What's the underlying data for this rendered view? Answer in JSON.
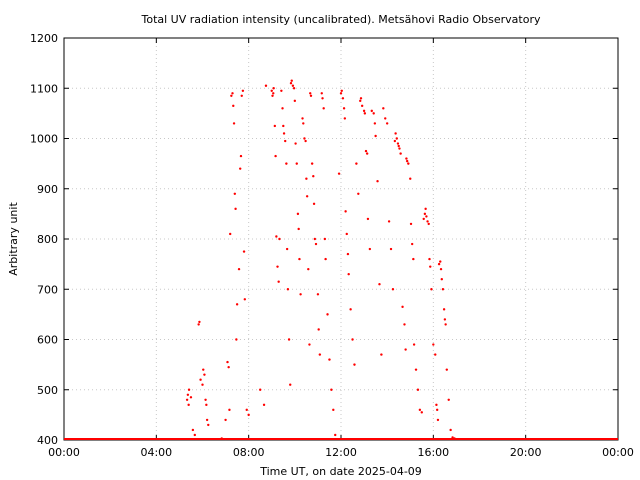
{
  "chart_data": {
    "type": "scatter",
    "title": "Total UV radiation intensity (uncalibrated). Metsähovi Radio Observatory",
    "xlabel": "Time UT, on date 2025-04-09",
    "ylabel": "Arbitrary unit",
    "xlim": [
      "00:00",
      "24:00"
    ],
    "ylim": [
      400,
      1200
    ],
    "x_ticks": [
      "00:00",
      "04:00",
      "08:00",
      "12:00",
      "16:00",
      "20:00",
      "00:00"
    ],
    "y_ticks": [
      400,
      500,
      600,
      700,
      800,
      900,
      1000,
      1100,
      1200
    ],
    "grid": true,
    "marker_color": "#ff0000",
    "baseline": {
      "value": 400,
      "from": "00:00",
      "to": "24:00"
    },
    "points": [
      [
        "05:20",
        480
      ],
      [
        "05:22",
        490
      ],
      [
        "05:24",
        470
      ],
      [
        "05:25",
        500
      ],
      [
        "05:30",
        485
      ],
      [
        "05:35",
        420
      ],
      [
        "05:40",
        410
      ],
      [
        "05:50",
        630
      ],
      [
        "05:52",
        635
      ],
      [
        "05:55",
        520
      ],
      [
        "06:00",
        510
      ],
      [
        "06:02",
        540
      ],
      [
        "06:05",
        530
      ],
      [
        "06:08",
        480
      ],
      [
        "06:10",
        470
      ],
      [
        "06:12",
        440
      ],
      [
        "06:15",
        430
      ],
      [
        "06:50",
        400
      ],
      [
        "07:00",
        440
      ],
      [
        "07:05",
        555
      ],
      [
        "07:08",
        545
      ],
      [
        "07:10",
        460
      ],
      [
        "07:12",
        810
      ],
      [
        "07:15",
        1085
      ],
      [
        "07:18",
        1090
      ],
      [
        "07:20",
        1065
      ],
      [
        "07:22",
        1030
      ],
      [
        "07:24",
        890
      ],
      [
        "07:26",
        860
      ],
      [
        "07:28",
        600
      ],
      [
        "07:30",
        670
      ],
      [
        "07:35",
        740
      ],
      [
        "07:38",
        940
      ],
      [
        "07:40",
        965
      ],
      [
        "07:42",
        1085
      ],
      [
        "07:45",
        1095
      ],
      [
        "07:48",
        775
      ],
      [
        "07:50",
        680
      ],
      [
        "07:55",
        460
      ],
      [
        "08:00",
        450
      ],
      [
        "08:30",
        500
      ],
      [
        "08:40",
        470
      ],
      [
        "08:45",
        1105
      ],
      [
        "09:00",
        1095
      ],
      [
        "09:02",
        1085
      ],
      [
        "09:04",
        1090
      ],
      [
        "09:05",
        1100
      ],
      [
        "09:08",
        1025
      ],
      [
        "09:10",
        965
      ],
      [
        "09:12",
        805
      ],
      [
        "09:15",
        745
      ],
      [
        "09:18",
        715
      ],
      [
        "09:20",
        800
      ],
      [
        "09:25",
        1095
      ],
      [
        "09:28",
        1060
      ],
      [
        "09:30",
        1025
      ],
      [
        "09:32",
        1010
      ],
      [
        "09:35",
        995
      ],
      [
        "09:38",
        950
      ],
      [
        "09:40",
        780
      ],
      [
        "09:42",
        700
      ],
      [
        "09:45",
        600
      ],
      [
        "09:48",
        510
      ],
      [
        "09:50",
        1110
      ],
      [
        "09:52",
        1115
      ],
      [
        "09:55",
        1105
      ],
      [
        "09:58",
        1100
      ],
      [
        "10:00",
        1075
      ],
      [
        "10:02",
        990
      ],
      [
        "10:05",
        950
      ],
      [
        "10:08",
        850
      ],
      [
        "10:10",
        820
      ],
      [
        "10:12",
        760
      ],
      [
        "10:15",
        690
      ],
      [
        "10:20",
        1040
      ],
      [
        "10:22",
        1030
      ],
      [
        "10:25",
        1000
      ],
      [
        "10:28",
        995
      ],
      [
        "10:30",
        920
      ],
      [
        "10:32",
        885
      ],
      [
        "10:35",
        740
      ],
      [
        "10:38",
        590
      ],
      [
        "10:40",
        1090
      ],
      [
        "10:42",
        1085
      ],
      [
        "10:45",
        950
      ],
      [
        "10:48",
        925
      ],
      [
        "10:50",
        870
      ],
      [
        "10:52",
        800
      ],
      [
        "10:55",
        790
      ],
      [
        "11:00",
        690
      ],
      [
        "11:02",
        620
      ],
      [
        "11:05",
        570
      ],
      [
        "11:10",
        1090
      ],
      [
        "11:12",
        1080
      ],
      [
        "11:15",
        1060
      ],
      [
        "11:18",
        800
      ],
      [
        "11:20",
        760
      ],
      [
        "11:25",
        650
      ],
      [
        "11:30",
        560
      ],
      [
        "11:35",
        500
      ],
      [
        "11:40",
        460
      ],
      [
        "11:45",
        410
      ],
      [
        "11:55",
        930
      ],
      [
        "12:00",
        1090
      ],
      [
        "12:02",
        1095
      ],
      [
        "12:05",
        1080
      ],
      [
        "12:08",
        1060
      ],
      [
        "12:10",
        1040
      ],
      [
        "12:12",
        855
      ],
      [
        "12:15",
        810
      ],
      [
        "12:18",
        770
      ],
      [
        "12:20",
        730
      ],
      [
        "12:25",
        660
      ],
      [
        "12:30",
        600
      ],
      [
        "12:35",
        550
      ],
      [
        "12:40",
        950
      ],
      [
        "12:45",
        890
      ],
      [
        "12:50",
        1075
      ],
      [
        "12:52",
        1080
      ],
      [
        "12:55",
        1065
      ],
      [
        "13:00",
        1055
      ],
      [
        "13:02",
        1050
      ],
      [
        "13:05",
        975
      ],
      [
        "13:08",
        970
      ],
      [
        "13:10",
        840
      ],
      [
        "13:15",
        780
      ],
      [
        "13:20",
        1055
      ],
      [
        "13:25",
        1050
      ],
      [
        "13:28",
        1030
      ],
      [
        "13:30",
        1005
      ],
      [
        "13:35",
        915
      ],
      [
        "13:40",
        710
      ],
      [
        "13:45",
        570
      ],
      [
        "13:50",
        1060
      ],
      [
        "13:55",
        1040
      ],
      [
        "14:00",
        1030
      ],
      [
        "14:05",
        835
      ],
      [
        "14:10",
        780
      ],
      [
        "14:15",
        700
      ],
      [
        "14:20",
        995
      ],
      [
        "14:22",
        1010
      ],
      [
        "14:25",
        1000
      ],
      [
        "14:28",
        990
      ],
      [
        "14:30",
        985
      ],
      [
        "14:32",
        980
      ],
      [
        "14:35",
        970
      ],
      [
        "14:40",
        665
      ],
      [
        "14:45",
        630
      ],
      [
        "14:48",
        580
      ],
      [
        "14:50",
        960
      ],
      [
        "14:52",
        955
      ],
      [
        "14:55",
        950
      ],
      [
        "15:00",
        920
      ],
      [
        "15:02",
        830
      ],
      [
        "15:05",
        790
      ],
      [
        "15:08",
        760
      ],
      [
        "15:10",
        590
      ],
      [
        "15:15",
        540
      ],
      [
        "15:20",
        500
      ],
      [
        "15:25",
        460
      ],
      [
        "15:30",
        455
      ],
      [
        "15:35",
        840
      ],
      [
        "15:38",
        850
      ],
      [
        "15:40",
        860
      ],
      [
        "15:42",
        845
      ],
      [
        "15:45",
        835
      ],
      [
        "15:48",
        830
      ],
      [
        "15:50",
        760
      ],
      [
        "15:52",
        745
      ],
      [
        "15:55",
        700
      ],
      [
        "16:00",
        590
      ],
      [
        "16:05",
        570
      ],
      [
        "16:08",
        470
      ],
      [
        "16:10",
        460
      ],
      [
        "16:12",
        440
      ],
      [
        "16:15",
        750
      ],
      [
        "16:18",
        755
      ],
      [
        "16:20",
        740
      ],
      [
        "16:22",
        720
      ],
      [
        "16:25",
        700
      ],
      [
        "16:28",
        660
      ],
      [
        "16:30",
        640
      ],
      [
        "16:32",
        630
      ],
      [
        "16:35",
        540
      ],
      [
        "16:40",
        480
      ],
      [
        "16:45",
        420
      ],
      [
        "16:50",
        405
      ],
      [
        "16:55",
        400
      ]
    ]
  }
}
